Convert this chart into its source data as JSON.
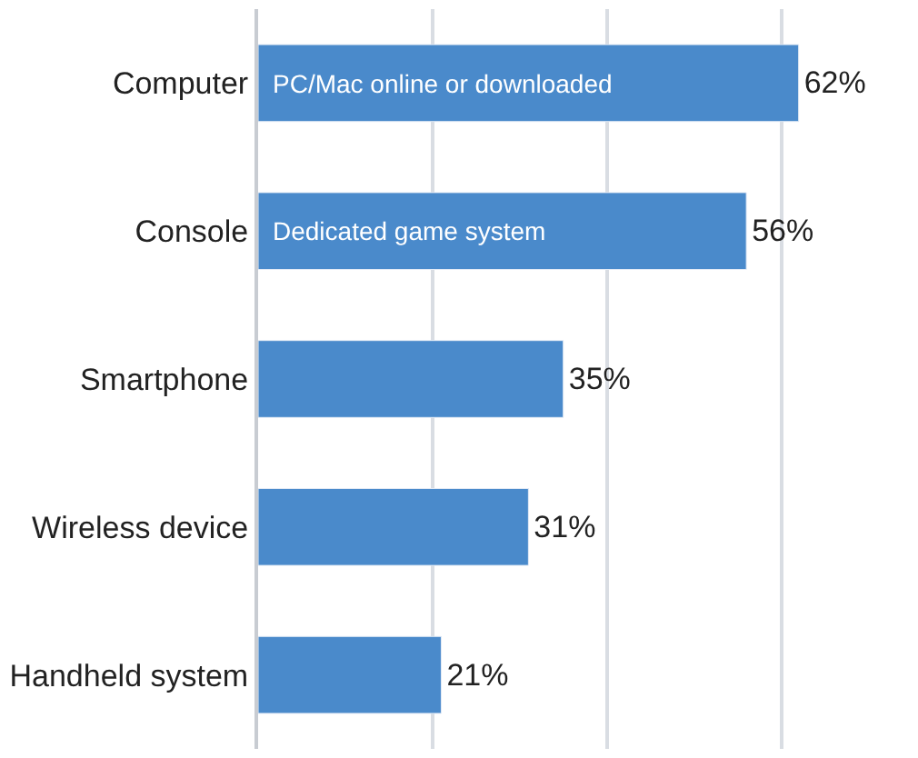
{
  "chart_data": {
    "type": "bar",
    "orientation": "horizontal",
    "categories": [
      "Computer",
      "Console",
      "Smartphone",
      "Wireless device",
      "Handheld system"
    ],
    "values": [
      62,
      56,
      35,
      31,
      21
    ],
    "value_labels": [
      "62%",
      "56%",
      "35%",
      "31%",
      "21%"
    ],
    "color": "#4a8acb",
    "xticks": [
      {
        "value": 0,
        "label": null
      },
      {
        "value": 20,
        "label": null
      },
      {
        "value": 40,
        "label": null
      },
      {
        "value": 60,
        "label": null
      }
    ],
    "grid": "x",
    "annotations": [
      {
        "text": "PC/Mac online or downloaded",
        "x": 0,
        "y": "Computer"
      },
      {
        "text": "Dedicated game system",
        "x": 0,
        "y": "Console"
      }
    ]
  }
}
